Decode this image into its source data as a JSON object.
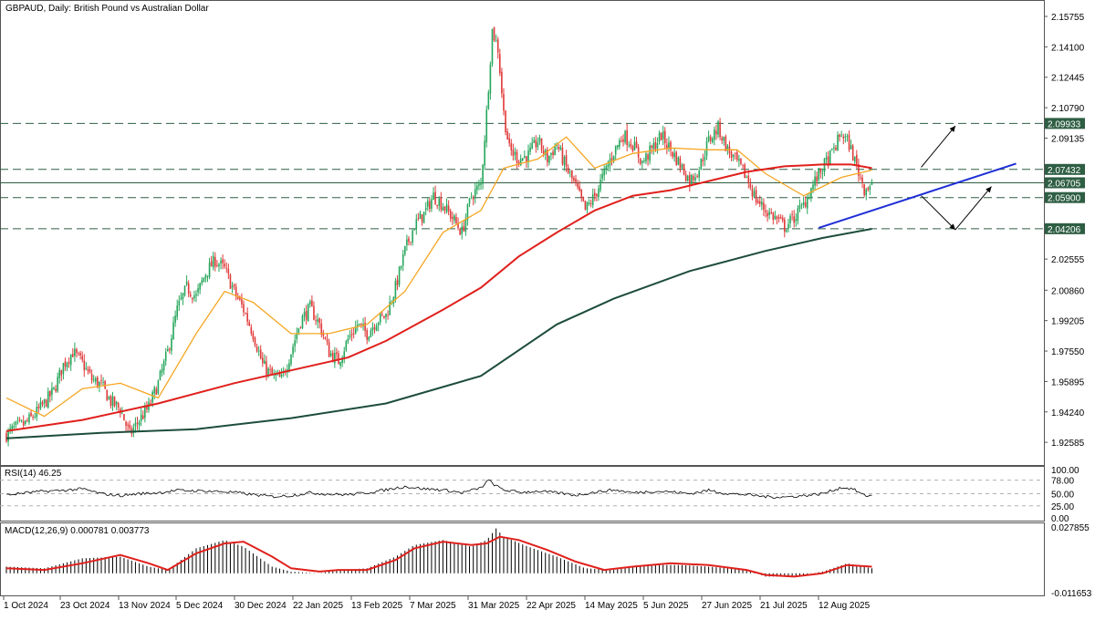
{
  "header": {
    "title": "GBPAUD, Daily:  British Pound vs Australian Dollar"
  },
  "colors": {
    "bull": "#26a65b",
    "bear": "#e03a3a",
    "ma_fast": "#f5a623",
    "ma_mid": "#e0201c",
    "ma_slow": "#1d4d3a",
    "trend": "#1f2fd6",
    "level": "#2e5e43",
    "rsi": "#000000",
    "macd_signal": "#e0201c",
    "macd_hist": "#000000",
    "grid": "#b0b0b0"
  },
  "chart_data": [
    {
      "type": "line",
      "name": "price",
      "title": "GBPAUD, Daily:  British Pound vs Australian Dollar",
      "ylim": [
        1.9155,
        2.1645
      ],
      "y_ticks": [
        "2.15755",
        "2.14100",
        "2.12445",
        "2.10790",
        "2.09135",
        "2.07432",
        "2.06705",
        "2.05900",
        "2.04206",
        "2.02555",
        "2.00860",
        "1.99205",
        "1.97550",
        "1.95895",
        "1.94240",
        "1.92585"
      ],
      "x_ticks": [
        "1 Oct 2024",
        "23 Oct 2024",
        "13 Nov 2024",
        "5 Dec 2024",
        "30 Dec 2024",
        "22 Jan 2025",
        "13 Feb 2025",
        "7 Mar 2025",
        "31 Mar 2025",
        "22 Apr 2025",
        "14 May 2025",
        "5 Jun 2025",
        "27 Jun 2025",
        "21 Jul 2025",
        "12 Aug 2025"
      ],
      "price_levels": [
        {
          "label": "2.09933",
          "value": 2.09933,
          "style": "dashed"
        },
        {
          "label": "2.07432",
          "value": 2.07432,
          "style": "dashed"
        },
        {
          "label": "2.06705",
          "value": 2.06705,
          "style": "solid"
        },
        {
          "label": "2.05900",
          "value": 2.059,
          "style": "dashed"
        },
        {
          "label": "2.04206",
          "value": 2.04206,
          "style": "dashed"
        }
      ],
      "close_path": [
        [
          0,
          1.93
        ],
        [
          5,
          1.934
        ],
        [
          10,
          1.936
        ],
        [
          15,
          1.941
        ],
        [
          20,
          1.947
        ],
        [
          25,
          1.954
        ],
        [
          30,
          1.968
        ],
        [
          35,
          1.975
        ],
        [
          40,
          1.969
        ],
        [
          45,
          1.96
        ],
        [
          50,
          1.957
        ],
        [
          55,
          1.948
        ],
        [
          60,
          1.944
        ],
        [
          65,
          1.93
        ],
        [
          70,
          1.938
        ],
        [
          75,
          1.945
        ],
        [
          80,
          1.958
        ],
        [
          85,
          1.975
        ],
        [
          90,
          1.998
        ],
        [
          95,
          2.01
        ],
        [
          100,
          2.005
        ],
        [
          105,
          2.018
        ],
        [
          110,
          2.025
        ],
        [
          115,
          2.02
        ],
        [
          120,
          2.008
        ],
        [
          125,
          1.998
        ],
        [
          130,
          1.985
        ],
        [
          135,
          1.968
        ],
        [
          140,
          1.962
        ],
        [
          145,
          1.96
        ],
        [
          150,
          1.975
        ],
        [
          155,
          1.992
        ],
        [
          160,
          1.999
        ],
        [
          165,
          1.99
        ],
        [
          170,
          1.975
        ],
        [
          175,
          1.97
        ],
        [
          180,
          1.982
        ],
        [
          185,
          1.99
        ],
        [
          190,
          1.985
        ],
        [
          195,
          1.992
        ],
        [
          200,
          1.995
        ],
        [
          205,
          2.01
        ],
        [
          210,
          2.03
        ],
        [
          215,
          2.044
        ],
        [
          220,
          2.05
        ],
        [
          225,
          2.06
        ],
        [
          230,
          2.055
        ],
        [
          235,
          2.048
        ],
        [
          240,
          2.04
        ],
        [
          245,
          2.06
        ],
        [
          250,
          2.066
        ],
        [
          253,
          2.105
        ],
        [
          256,
          2.15
        ],
        [
          259,
          2.14
        ],
        [
          262,
          2.105
        ],
        [
          265,
          2.085
        ],
        [
          270,
          2.08
        ],
        [
          275,
          2.082
        ],
        [
          280,
          2.09
        ],
        [
          285,
          2.08
        ],
        [
          290,
          2.088
        ],
        [
          295,
          2.075
        ],
        [
          300,
          2.065
        ],
        [
          305,
          2.052
        ],
        [
          310,
          2.06
        ],
        [
          315,
          2.072
        ],
        [
          320,
          2.084
        ],
        [
          325,
          2.093
        ],
        [
          330,
          2.088
        ],
        [
          335,
          2.078
        ],
        [
          340,
          2.085
        ],
        [
          345,
          2.093
        ],
        [
          350,
          2.085
        ],
        [
          355,
          2.077
        ],
        [
          360,
          2.068
        ],
        [
          365,
          2.075
        ],
        [
          370,
          2.09
        ],
        [
          375,
          2.097
        ],
        [
          380,
          2.085
        ],
        [
          385,
          2.078
        ],
        [
          390,
          2.07
        ],
        [
          395,
          2.058
        ],
        [
          400,
          2.052
        ],
        [
          405,
          2.048
        ],
        [
          410,
          2.043
        ],
        [
          415,
          2.048
        ],
        [
          420,
          2.055
        ],
        [
          425,
          2.066
        ],
        [
          430,
          2.075
        ],
        [
          435,
          2.083
        ],
        [
          440,
          2.094
        ],
        [
          444,
          2.088
        ],
        [
          448,
          2.076
        ],
        [
          452,
          2.064
        ],
        [
          456,
          2.066
        ]
      ],
      "bar_count": 457,
      "series": [
        {
          "name": "MA fast",
          "path": [
            [
              0,
              1.95
            ],
            [
              20,
              1.94
            ],
            [
              40,
              1.955
            ],
            [
              60,
              1.958
            ],
            [
              80,
              1.95
            ],
            [
              100,
              1.985
            ],
            [
              115,
              2.008
            ],
            [
              130,
              2.002
            ],
            [
              150,
              1.985
            ],
            [
              170,
              1.985
            ],
            [
              190,
              1.99
            ],
            [
              210,
              2.008
            ],
            [
              230,
              2.04
            ],
            [
              250,
              2.052
            ],
            [
              262,
              2.075
            ],
            [
              280,
              2.08
            ],
            [
              295,
              2.092
            ],
            [
              310,
              2.075
            ],
            [
              330,
              2.083
            ],
            [
              350,
              2.086
            ],
            [
              370,
              2.085
            ],
            [
              385,
              2.085
            ],
            [
              400,
              2.072
            ],
            [
              420,
              2.06
            ],
            [
              440,
              2.07
            ],
            [
              456,
              2.074
            ]
          ]
        },
        {
          "name": "MA mid",
          "path": [
            [
              0,
              1.932
            ],
            [
              40,
              1.938
            ],
            [
              80,
              1.947
            ],
            [
              120,
              1.958
            ],
            [
              150,
              1.965
            ],
            [
              180,
              1.972
            ],
            [
              200,
              1.981
            ],
            [
              230,
              1.998
            ],
            [
              250,
              2.01
            ],
            [
              270,
              2.027
            ],
            [
              290,
              2.04
            ],
            [
              310,
              2.052
            ],
            [
              330,
              2.06
            ],
            [
              350,
              2.063
            ],
            [
              370,
              2.068
            ],
            [
              390,
              2.073
            ],
            [
              410,
              2.076
            ],
            [
              430,
              2.077
            ],
            [
              445,
              2.077
            ],
            [
              456,
              2.075
            ]
          ]
        },
        {
          "name": "MA slow",
          "path": [
            [
              0,
              1.928
            ],
            [
              50,
              1.931
            ],
            [
              100,
              1.933
            ],
            [
              150,
              1.939
            ],
            [
              200,
              1.947
            ],
            [
              250,
              1.962
            ],
            [
              290,
              1.99
            ],
            [
              320,
              2.004
            ],
            [
              360,
              2.019
            ],
            [
              400,
              2.03
            ],
            [
              430,
              2.037
            ],
            [
              456,
              2.042
            ]
          ]
        }
      ]
    },
    {
      "type": "line",
      "name": "RSI(14) 46.25",
      "title": "RSI(14) 46.25",
      "ylim": [
        0,
        100
      ],
      "y_ticks": [
        "100.00",
        "78.00",
        "50.00",
        "25.00",
        "0.00"
      ],
      "guide_levels": [
        78,
        50,
        25
      ],
      "path": [
        [
          0,
          47
        ],
        [
          10,
          52
        ],
        [
          20,
          55
        ],
        [
          30,
          57
        ],
        [
          40,
          60
        ],
        [
          50,
          50
        ],
        [
          60,
          46
        ],
        [
          70,
          50
        ],
        [
          80,
          52
        ],
        [
          90,
          57
        ],
        [
          100,
          56
        ],
        [
          110,
          55
        ],
        [
          120,
          53
        ],
        [
          130,
          48
        ],
        [
          140,
          44
        ],
        [
          150,
          46
        ],
        [
          160,
          52
        ],
        [
          170,
          49
        ],
        [
          180,
          48
        ],
        [
          190,
          52
        ],
        [
          200,
          58
        ],
        [
          210,
          65
        ],
        [
          220,
          60
        ],
        [
          230,
          58
        ],
        [
          240,
          52
        ],
        [
          250,
          62
        ],
        [
          254,
          78
        ],
        [
          258,
          66
        ],
        [
          262,
          58
        ],
        [
          270,
          53
        ],
        [
          280,
          55
        ],
        [
          290,
          52
        ],
        [
          300,
          47
        ],
        [
          310,
          53
        ],
        [
          320,
          58
        ],
        [
          330,
          52
        ],
        [
          340,
          55
        ],
        [
          350,
          54
        ],
        [
          360,
          50
        ],
        [
          370,
          57
        ],
        [
          380,
          50
        ],
        [
          390,
          48
        ],
        [
          400,
          44
        ],
        [
          410,
          43
        ],
        [
          420,
          46
        ],
        [
          430,
          50
        ],
        [
          440,
          63
        ],
        [
          446,
          60
        ],
        [
          452,
          46
        ],
        [
          456,
          46.25
        ]
      ]
    },
    {
      "type": "bar",
      "name": "MACD(12,26,9) 0.000781 0.003773",
      "title": "MACD(12,26,9) 0.000781 0.003773",
      "ylim": [
        -0.011653,
        0.027855
      ],
      "y_ticks": [
        "0.027855",
        "-0.011653"
      ],
      "hist_path": [
        [
          0,
          0.004
        ],
        [
          20,
          0.003
        ],
        [
          40,
          0.009
        ],
        [
          60,
          0.01
        ],
        [
          75,
          0.004
        ],
        [
          85,
          0.002
        ],
        [
          100,
          0.015
        ],
        [
          115,
          0.02
        ],
        [
          125,
          0.016
        ],
        [
          140,
          0.004
        ],
        [
          150,
          0.001
        ],
        [
          165,
          0.0
        ],
        [
          175,
          0.002
        ],
        [
          190,
          0.003
        ],
        [
          205,
          0.01
        ],
        [
          215,
          0.017
        ],
        [
          230,
          0.02
        ],
        [
          245,
          0.016
        ],
        [
          253,
          0.02
        ],
        [
          258,
          0.027
        ],
        [
          262,
          0.022
        ],
        [
          275,
          0.016
        ],
        [
          290,
          0.01
        ],
        [
          305,
          0.003
        ],
        [
          320,
          0.002
        ],
        [
          340,
          0.005
        ],
        [
          355,
          0.005
        ],
        [
          370,
          0.004
        ],
        [
          390,
          0.002
        ],
        [
          400,
          -0.002
        ],
        [
          415,
          -0.002
        ],
        [
          430,
          0.001
        ],
        [
          443,
          0.006
        ],
        [
          456,
          0.003
        ]
      ],
      "signal_path": [
        [
          0,
          0.003
        ],
        [
          20,
          0.002
        ],
        [
          40,
          0.006
        ],
        [
          60,
          0.011
        ],
        [
          75,
          0.006
        ],
        [
          85,
          0.002
        ],
        [
          100,
          0.012
        ],
        [
          115,
          0.018
        ],
        [
          125,
          0.019
        ],
        [
          140,
          0.01
        ],
        [
          150,
          0.003
        ],
        [
          165,
          0.001
        ],
        [
          175,
          0.002
        ],
        [
          190,
          0.002
        ],
        [
          205,
          0.008
        ],
        [
          215,
          0.015
        ],
        [
          230,
          0.019
        ],
        [
          245,
          0.017
        ],
        [
          253,
          0.018
        ],
        [
          260,
          0.022
        ],
        [
          270,
          0.02
        ],
        [
          285,
          0.014
        ],
        [
          300,
          0.007
        ],
        [
          315,
          0.002
        ],
        [
          330,
          0.004
        ],
        [
          350,
          0.006
        ],
        [
          370,
          0.005
        ],
        [
          390,
          0.002
        ],
        [
          400,
          -0.001
        ],
        [
          415,
          -0.002
        ],
        [
          430,
          0.0
        ],
        [
          443,
          0.005
        ],
        [
          456,
          0.004
        ]
      ]
    }
  ],
  "annotations": {
    "trendline_from": [
      428,
      2.0425
    ],
    "trendline_to": [
      532,
      2.0775
    ],
    "arrows": [
      {
        "from": [
          482,
          2.0755
        ],
        "to": [
          500,
          2.098
        ]
      },
      {
        "from": [
          482,
          2.06
        ],
        "to": [
          500,
          2.0415
        ]
      },
      {
        "from": [
          500,
          2.0415
        ],
        "to": [
          519,
          2.065
        ]
      }
    ]
  }
}
